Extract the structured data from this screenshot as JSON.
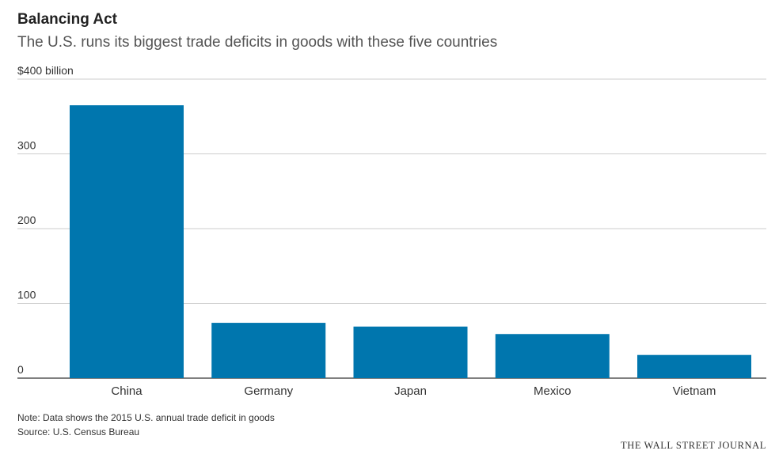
{
  "chart_data": {
    "type": "bar",
    "title": "Balancing Act",
    "subtitle": "The U.S. runs its biggest trade deficits in goods with these five countries",
    "categories": [
      "China",
      "Germany",
      "Japan",
      "Mexico",
      "Vietnam"
    ],
    "values": [
      365,
      74,
      69,
      59,
      31
    ],
    "yunit_label": "$400 billion",
    "yticks": [
      0,
      100,
      200,
      300,
      400
    ],
    "ytick_labels": [
      "0",
      "100",
      "200",
      "300",
      "$400 billion"
    ],
    "ylim": [
      0,
      400
    ],
    "xlabel": "",
    "ylabel": "",
    "bar_color": "#0076ae",
    "grid": true,
    "note": "Note: Data shows the 2015 U.S. annual trade deficit in goods",
    "source": "Source: U.S. Census Bureau",
    "credit": "THE WALL STREET JOURNAL"
  }
}
